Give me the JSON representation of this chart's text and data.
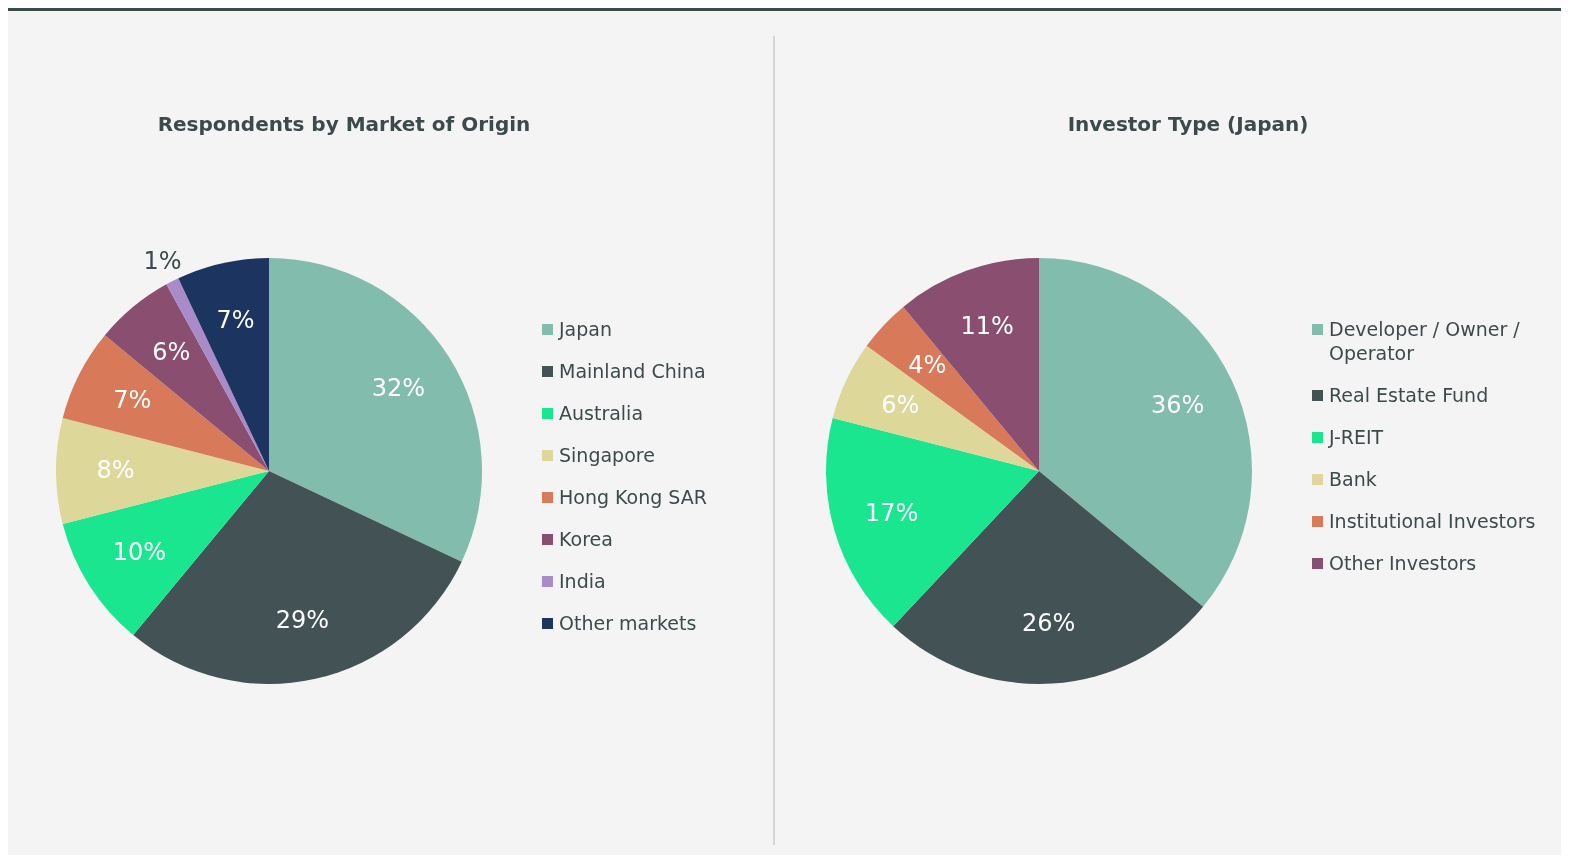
{
  "chart_data": [
    {
      "type": "pie",
      "title": "Respondents by Market of Origin",
      "categories": [
        "Japan",
        "Mainland China",
        "Australia",
        "Singapore",
        "Hong Kong SAR",
        "Korea",
        "India",
        "Other markets"
      ],
      "values": [
        32,
        29,
        10,
        8,
        7,
        6,
        1,
        7
      ],
      "colors": [
        "#82bcad",
        "#435254",
        "#1ae68f",
        "#ddd89a",
        "#d87a5a",
        "#8a4f70",
        "#a98bc9",
        "#1c3560"
      ],
      "legend": "right",
      "value_labels": [
        "32%",
        "29%",
        "10%",
        "8%",
        "7%",
        "6%",
        "1%",
        "7%"
      ]
    },
    {
      "type": "pie",
      "title": "Investor Type (Japan)",
      "categories": [
        "Developer / Owner / Operator",
        "Real Estate Fund",
        "J-REIT",
        "Bank",
        "Institutional Investors",
        "Other Investors"
      ],
      "values": [
        36,
        26,
        17,
        6,
        4,
        11
      ],
      "colors": [
        "#82bcad",
        "#435254",
        "#1ae68f",
        "#ddd89a",
        "#d87a5a",
        "#8a4f70"
      ],
      "legend": "right",
      "value_labels": [
        "36%",
        "26%",
        "17%",
        "6%",
        "4%",
        "11%"
      ]
    }
  ]
}
